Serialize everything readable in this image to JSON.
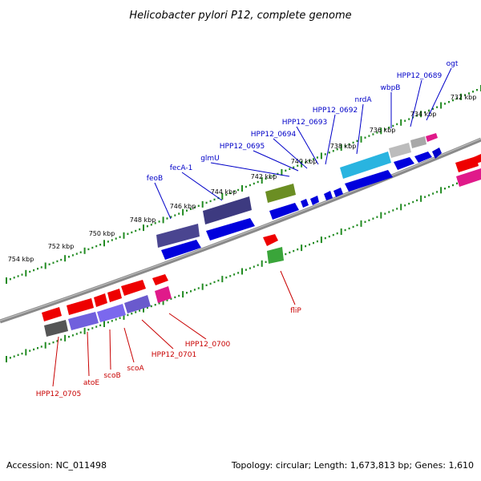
{
  "title": "Helicobacter pylori P12, complete genome",
  "footer": {
    "accession": "Accession: NC_011498",
    "summary": "Topology: circular; Length: 1,673,813 bp; Genes: 1,610"
  },
  "colors": {
    "forward_label": "#0000c8",
    "reverse_label": "#c80000",
    "backbone": "#808080",
    "tick": "#228b22"
  },
  "ruler": {
    "unit": "kbp",
    "labels": [
      "732 kbp",
      "734 kbp",
      "736 kbp",
      "738 kbp",
      "740 kbp",
      "742 kbp",
      "744 kbp",
      "746 kbp",
      "748 kbp",
      "750 kbp",
      "752 kbp",
      "754 kbp"
    ]
  },
  "features": {
    "forward_labels": [
      "ogt",
      "HPP12_0689",
      "wbpB",
      "nrdA",
      "HPP12_0692",
      "HPP12_0693",
      "HPP12_0694",
      "HPP12_0695",
      "glmU",
      "fecA-1",
      "feoB"
    ],
    "reverse_labels": [
      "fliP",
      "HPP12_0700",
      "HPP12_0701",
      "scoA",
      "scoB",
      "atoE",
      "HPP12_0705"
    ]
  }
}
